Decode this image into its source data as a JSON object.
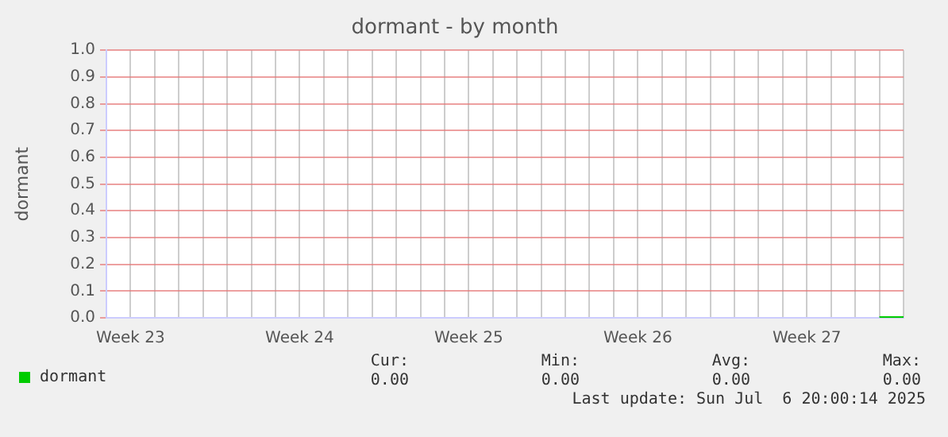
{
  "chart_data": {
    "type": "line",
    "title": "dormant - by month",
    "ylabel": "dormant",
    "categories": [
      null,
      "Week 23",
      null,
      null,
      null,
      null,
      null,
      null,
      "Week 24",
      null,
      null,
      null,
      null,
      null,
      null,
      "Week 25",
      null,
      null,
      null,
      null,
      null,
      null,
      "Week 26",
      null,
      null,
      null,
      null,
      null,
      null,
      "Week 27",
      null,
      null,
      null,
      null
    ],
    "ylim": [
      0,
      1
    ],
    "yticks": [
      {
        "value": 0,
        "label": "0.0"
      },
      0.1,
      0.2,
      0.3,
      0.4,
      0.5,
      0.6,
      0.7,
      0.8,
      0.9,
      {
        "value": 1,
        "label": "1.0"
      }
    ],
    "grid": true,
    "legend": "bottom",
    "marker": "none",
    "line_style": "solid",
    "series": [
      {
        "name": "dormant",
        "color": "#00cc00",
        "values": [
          null,
          null,
          null,
          null,
          null,
          null,
          null,
          null,
          null,
          null,
          null,
          null,
          null,
          null,
          null,
          null,
          null,
          null,
          null,
          null,
          null,
          null,
          null,
          null,
          null,
          null,
          null,
          null,
          null,
          null,
          null,
          null,
          0,
          0
        ]
      }
    ],
    "annotations": [
      "Cur:",
      "Min:",
      "Avg:",
      "Max:",
      "0.00",
      "0.00",
      "0.00",
      "0.00",
      "Last update: Sun Jul  6 20:00:14 2025"
    ]
  }
}
